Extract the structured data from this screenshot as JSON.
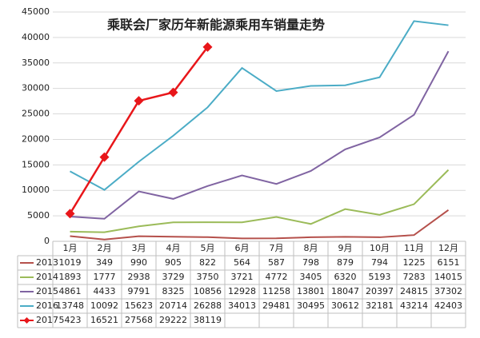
{
  "chart_data": {
    "type": "line",
    "title": "乘联会厂家历年新能源乘用车销量走势",
    "categories": [
      "1月",
      "2月",
      "3月",
      "4月",
      "5月",
      "6月",
      "7月",
      "8月",
      "9月",
      "10月",
      "11月",
      "12月"
    ],
    "ylim": [
      0,
      45000
    ],
    "yticks": [
      0,
      5000,
      10000,
      15000,
      20000,
      25000,
      30000,
      35000,
      40000,
      45000
    ],
    "grid": true,
    "series": [
      {
        "name": "2013",
        "color": "#b5504b",
        "values": [
          1019,
          349,
          990,
          905,
          822,
          564,
          587,
          798,
          879,
          794,
          1225,
          6151
        ]
      },
      {
        "name": "2014",
        "color": "#9bbb59",
        "values": [
          1893,
          1777,
          2938,
          3729,
          3750,
          3721,
          4772,
          3405,
          6320,
          5193,
          7283,
          14015
        ]
      },
      {
        "name": "2015",
        "color": "#8064a2",
        "values": [
          4861,
          4433,
          9791,
          8325,
          10856,
          12928,
          11258,
          13801,
          18047,
          20397,
          24815,
          37302
        ]
      },
      {
        "name": "2016",
        "color": "#4bacc6",
        "values": [
          13748,
          10092,
          15623,
          20714,
          26288,
          34013,
          29481,
          30495,
          30612,
          32181,
          43214,
          42403
        ]
      },
      {
        "name": "2017",
        "color": "#e8161a",
        "marker": "diamond",
        "values": [
          5423,
          16521,
          27568,
          29222,
          38119,
          null,
          null,
          null,
          null,
          null,
          null,
          null
        ]
      }
    ]
  }
}
